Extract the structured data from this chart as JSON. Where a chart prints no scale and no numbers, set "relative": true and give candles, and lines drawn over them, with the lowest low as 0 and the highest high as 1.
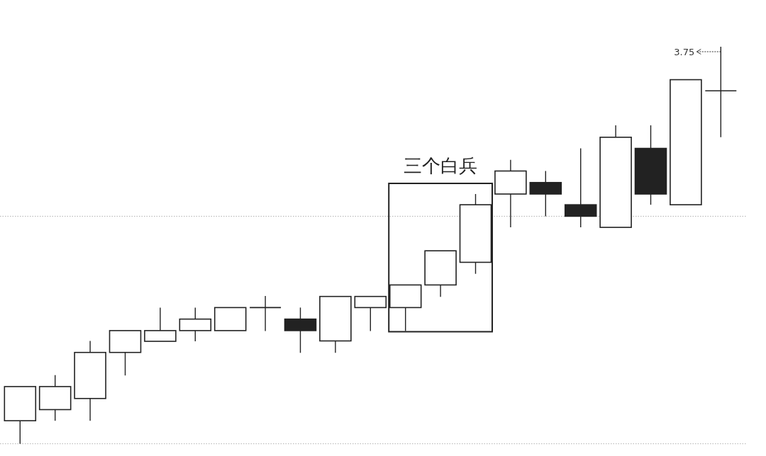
{
  "chart_data": {
    "type": "candlestick",
    "relative": true,
    "color": "#222222",
    "categories": [
      null,
      null,
      null,
      null,
      null,
      null,
      null,
      null,
      null,
      null,
      null,
      null,
      null,
      null,
      null,
      null,
      null,
      null,
      null,
      null,
      null
    ],
    "ohlc": [
      [
        0.058,
        0.144,
        0,
        0.144
      ],
      [
        0.086,
        0.173,
        0.058,
        0.144
      ],
      [
        0.114,
        0.259,
        0.058,
        0.23
      ],
      [
        0.23,
        0.285,
        0.172,
        0.285
      ],
      [
        0.258,
        0.343,
        0.258,
        0.285
      ],
      [
        0.285,
        0.343,
        0.258,
        0.314
      ],
      [
        0.285,
        0.343,
        0.285,
        0.343
      ],
      [
        0.343,
        0.372,
        0.284,
        0.343
      ],
      [
        0.314,
        0.343,
        0.229,
        0.285
      ],
      [
        0.259,
        0.371,
        0.229,
        0.371
      ],
      [
        0.343,
        0.371,
        0.284,
        0.371
      ],
      [
        0.343,
        0.4,
        0.284,
        0.4
      ],
      [
        0.4,
        0.486,
        0.37,
        0.486
      ],
      [
        0.457,
        0.629,
        0.428,
        0.602
      ],
      [
        0.629,
        0.715,
        0.545,
        0.687
      ],
      [
        0.658,
        0.687,
        0.573,
        0.629
      ],
      [
        0.602,
        0.744,
        0.545,
        0.573
      ],
      [
        0.545,
        0.802,
        0.545,
        0.772
      ],
      [
        0.744,
        0.802,
        0.602,
        0.629
      ],
      [
        0.602,
        0.917,
        0.602,
        0.917
      ],
      [
        0.889,
        1,
        0.772,
        0.889
      ]
    ],
    "ref_lines": [
      {
        "axis": "y",
        "value": 0.573,
        "color": "#b0b0b0",
        "line_style": "dotted"
      },
      {
        "axis": "y",
        "value": 0,
        "color": "#b0b0b0",
        "line_style": "dotted"
      }
    ],
    "annotations": [
      "三个白兵",
      "3.75"
    ]
  }
}
